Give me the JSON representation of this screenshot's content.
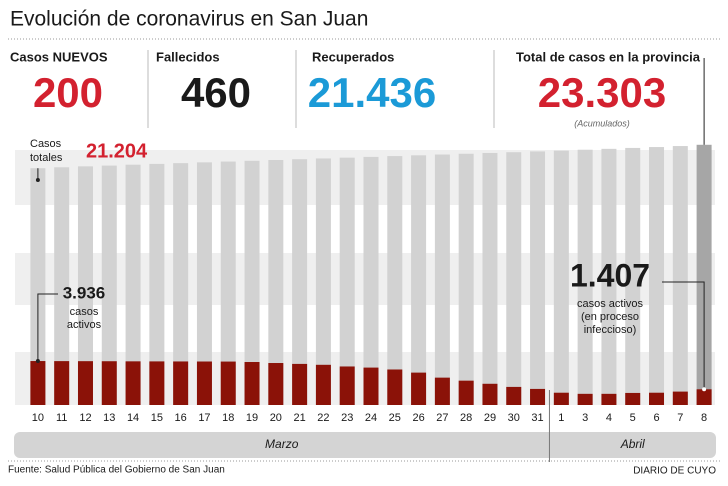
{
  "header": {
    "title": "Evolución de coronavirus en San Juan"
  },
  "stats": [
    {
      "label": "Casos NUEVOS",
      "value": "200",
      "color": "#d3212f"
    },
    {
      "label": "Fallecidos",
      "value": "460",
      "color": "#1a1a1a"
    },
    {
      "label": "Recuperados",
      "value": "21.436",
      "color": "#1b9ad7"
    },
    {
      "label": "Total de casos en la provincia",
      "value": "23.303",
      "color": "#d3212f",
      "note": "(Acumulados)"
    }
  ],
  "chart_data": {
    "type": "bar-overlay",
    "categories": [
      "10",
      "11",
      "12",
      "13",
      "14",
      "15",
      "16",
      "17",
      "18",
      "19",
      "20",
      "21",
      "22",
      "23",
      "24",
      "25",
      "26",
      "27",
      "28",
      "29",
      "30",
      "31",
      "1",
      "3",
      "4",
      "5",
      "6",
      "7",
      "8"
    ],
    "series": [
      {
        "name": "Casos totales",
        "color": "#d2d2d2",
        "last_color": "#a6a6a6",
        "values": [
          21204,
          21290,
          21370,
          21440,
          21520,
          21590,
          21660,
          21730,
          21800,
          21870,
          21940,
          22010,
          22080,
          22150,
          22220,
          22290,
          22360,
          22430,
          22500,
          22570,
          22640,
          22710,
          22780,
          22860,
          22940,
          23020,
          23100,
          23190,
          23303
        ]
      },
      {
        "name": "Casos activos",
        "color": "#8b1208",
        "values": [
          3936,
          3930,
          3925,
          3920,
          3910,
          3905,
          3900,
          3895,
          3890,
          3850,
          3760,
          3680,
          3600,
          3450,
          3350,
          3180,
          2900,
          2450,
          2180,
          1900,
          1620,
          1440,
          1100,
          1000,
          1000,
          1080,
          1100,
          1200,
          1407
        ]
      }
    ],
    "ylim": [
      0,
      30000
    ],
    "annotations": {
      "total_lines": [
        "Casos",
        "totales"
      ],
      "total_first": "21.204",
      "active_first": "3.936",
      "active_first_lines": [
        "casos",
        "activos"
      ],
      "active_last": "1.407",
      "active_last_lines": [
        "casos activos",
        "(en proceso",
        "infeccioso)"
      ]
    },
    "month_groups": [
      {
        "label": "Marzo",
        "span": 22
      },
      {
        "label": "Abril",
        "span": 7
      }
    ]
  },
  "footer": {
    "source": "Fuente: Salud Pública del Gobierno de San Juan",
    "brand": "DIARIO DE CUYO"
  }
}
